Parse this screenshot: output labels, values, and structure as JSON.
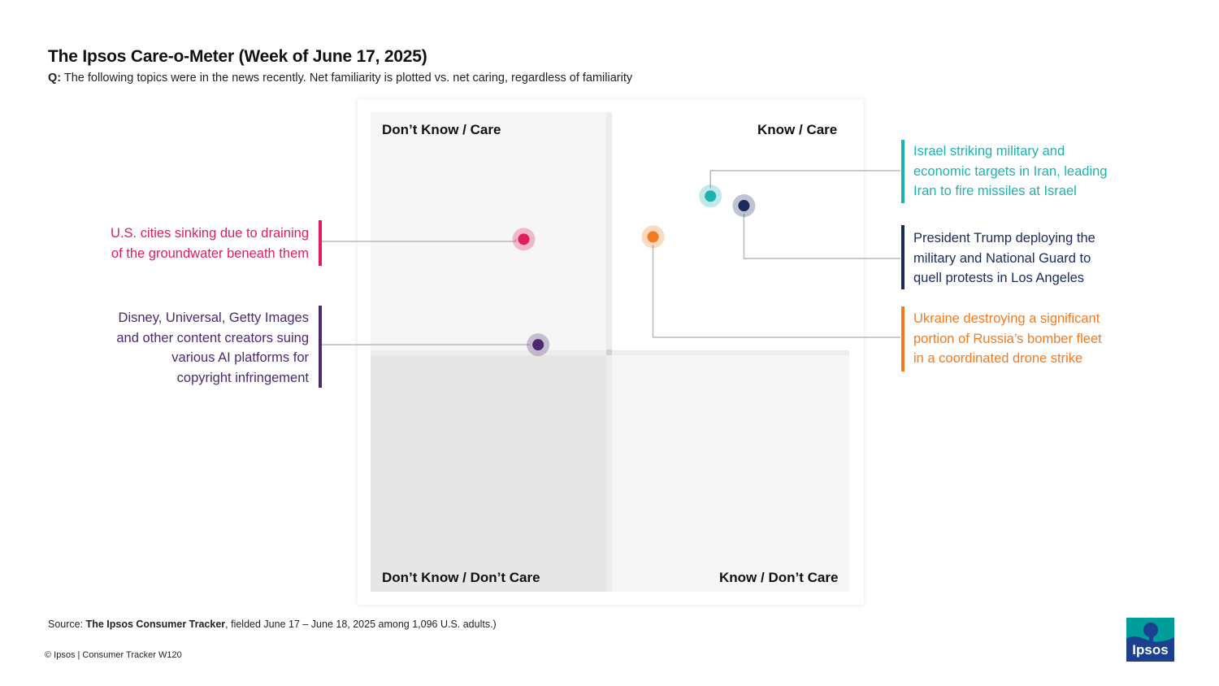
{
  "title": "The Ipsos Care-o-Meter (Week of June 17, 2025)",
  "question": {
    "prefix": "Q:",
    "text": " The following topics were in the news recently. Net familiarity is plotted vs. net caring, regardless of familiarity"
  },
  "quadrants": {
    "top_left": "Don’t Know / Care",
    "top_right": "Know / Care",
    "bottom_left": "Don’t Know / Don’t Care",
    "bottom_right": "Know / Don’t Care"
  },
  "chart_data": {
    "type": "scatter",
    "title": "The Ipsos Care-o-Meter (Week of June 17, 2025)",
    "xlabel": "Net familiarity",
    "ylabel": "Net caring",
    "grid": false,
    "xlim": [
      -1,
      1
    ],
    "ylim": [
      -1,
      1
    ],
    "series": [
      {
        "label": "Israel striking military and economic targets in Iran, leading Iran to fire missiles at Israel",
        "color": "#1fb1b0",
        "x": 0.42,
        "y": 0.65,
        "side": "right"
      },
      {
        "label": "President Trump deploying the military and National Guard to quell protests in Los Angeles",
        "color": "#1b2a5e",
        "x": 0.56,
        "y": 0.61,
        "side": "right"
      },
      {
        "label": "Ukraine destroying a significant portion of Russia’s bomber fleet in a coordinated drone strike",
        "color": "#f57a1e",
        "x": 0.18,
        "y": 0.48,
        "side": "right"
      },
      {
        "label": "U.S. cities sinking due to draining of the groundwater beneath them",
        "color": "#e01e5a",
        "x": -0.36,
        "y": 0.47,
        "side": "left"
      },
      {
        "label": "Disney, Universal, Getty Images and other content creators suing various AI platforms for copyright infringement",
        "color": "#4b2a6e",
        "x": -0.3,
        "y": 0.03,
        "side": "left"
      }
    ]
  },
  "annotations": {
    "israel": [
      "Israel striking military and",
      "economic targets in Iran, leading",
      "Iran to fire missiles at Israel"
    ],
    "trump": [
      "President Trump deploying the",
      "military and National Guard to",
      "quell protests in Los Angeles"
    ],
    "ukraine": [
      "Ukraine destroying a significant",
      "portion of Russia’s bomber fleet",
      "in a coordinated drone strike"
    ],
    "sinking": [
      "U.S. cities sinking due to draining",
      "of the groundwater beneath them"
    ],
    "disney": [
      "Disney, Universal, Getty Images",
      "and other content creators suing",
      "various AI platforms for",
      "copyright infringement"
    ]
  },
  "source": {
    "prefix": "Source: ",
    "name": "The Ipsos Consumer Tracker",
    "suffix": ", fielded June 17 – June 18, 2025 among 1,096 U.S. adults.)"
  },
  "footer": "© Ipsos | Consumer Tracker W120",
  "logo": {
    "text": "Ipsos",
    "colors": [
      "#009d9a",
      "#1c3f8f"
    ]
  }
}
